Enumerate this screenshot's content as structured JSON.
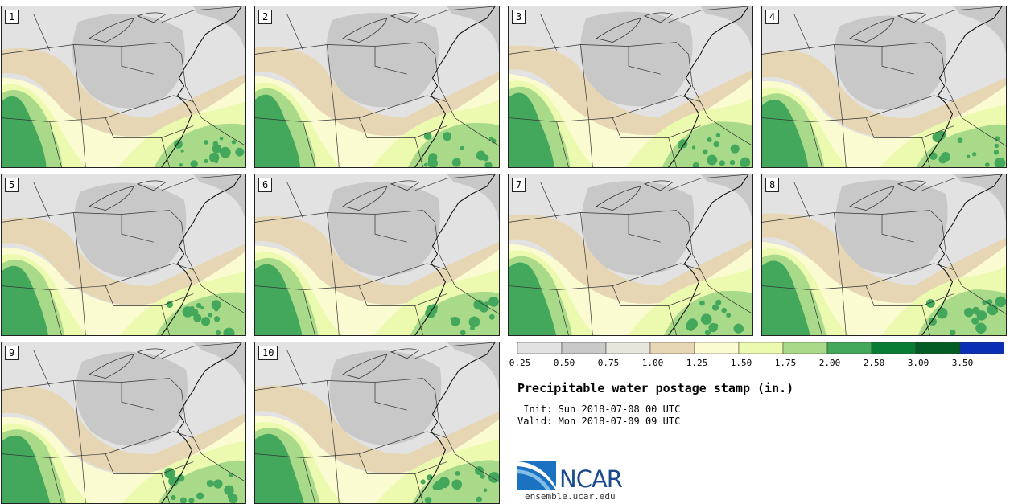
{
  "chart_data": {
    "type": "heatmap",
    "title": "Precipitable water postage stamp (in.)",
    "init": "Init: Sun 2018-07-08 00 UTC",
    "valid": "Valid: Mon 2018-07-09 09 UTC",
    "members": [
      "1",
      "2",
      "3",
      "4",
      "5",
      "6",
      "7",
      "8",
      "9",
      "10"
    ],
    "colorbar": {
      "levels": [
        0.25,
        0.5,
        0.75,
        1.0,
        1.25,
        1.5,
        1.75,
        2.0,
        2.5,
        3.0,
        3.5
      ],
      "tick_labels": [
        "0.25",
        "0.50",
        "0.75",
        "1.00",
        "1.25",
        "1.50",
        "1.75",
        "2.00",
        "2.50",
        "3.00",
        "3.50"
      ],
      "colors": [
        "#e2e2e2",
        "#c8c8c8",
        "#e6e6dc",
        "#e6d6b4",
        "#fbfbd2",
        "#ecfab0",
        "#a9da8a",
        "#44a85c",
        "#087c34",
        "#035b26",
        "#0a2fb4"
      ]
    },
    "logo": {
      "text": "NCAR",
      "website": "ensemble.ucar.edu",
      "color": "#1a4a8a"
    }
  }
}
